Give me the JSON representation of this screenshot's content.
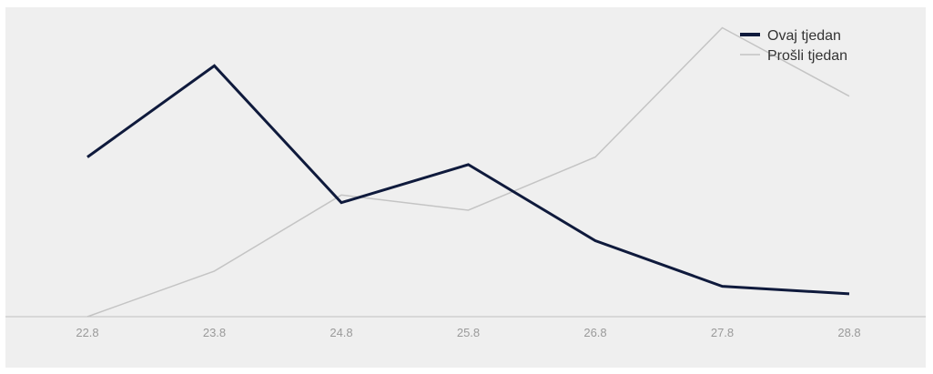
{
  "chart_data": {
    "type": "line",
    "title": "",
    "xlabel": "",
    "ylabel": "",
    "categories": [
      "22.8",
      "23.8",
      "24.8",
      "25.8",
      "26.8",
      "27.8",
      "28.8"
    ],
    "ylim": [
      0,
      7.9
    ],
    "grid": false,
    "legend_position": "top-right",
    "series": [
      {
        "name": "Ovaj tjedan",
        "values": [
          4.2,
          6.6,
          3.0,
          4.0,
          2.0,
          0.8,
          0.6
        ],
        "color": "#0f1a3c",
        "line_style": "thick"
      },
      {
        "name": "Prošli tjedan",
        "values": [
          0.0,
          1.2,
          3.2,
          2.8,
          4.2,
          7.6,
          5.8
        ],
        "color": "#c4c4c4",
        "line_style": "thin"
      }
    ]
  },
  "colors": {
    "background": "#efefef",
    "axis": "#c0c0c0",
    "tick_label": "#9a9a9a"
  }
}
